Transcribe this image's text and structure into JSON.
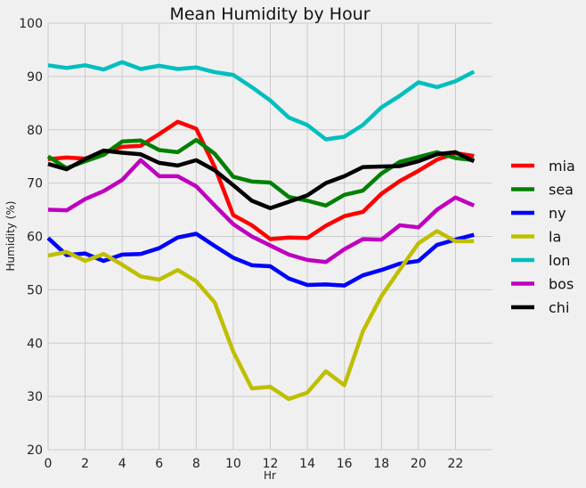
{
  "chart_data": {
    "type": "line",
    "title": "Mean Humidity by Hour",
    "xlabel": "Hr",
    "ylabel": "Humidity (%)",
    "xlim": [
      0,
      24
    ],
    "ylim": [
      20,
      100
    ],
    "xticks": [
      0,
      2,
      4,
      6,
      8,
      10,
      12,
      14,
      16,
      18,
      20,
      22
    ],
    "yticks": [
      20,
      30,
      40,
      50,
      60,
      70,
      80,
      90,
      100
    ],
    "grid": true,
    "legend_position": "right",
    "x": [
      0,
      1,
      2,
      3,
      4,
      5,
      6,
      7,
      8,
      9,
      10,
      11,
      12,
      13,
      14,
      15,
      16,
      17,
      18,
      19,
      20,
      21,
      22,
      23
    ],
    "series": [
      {
        "name": "mia",
        "color": "#ff0000",
        "values": [
          74.5,
          74.8,
          74.6,
          75.8,
          76.8,
          77.0,
          79.2,
          81.5,
          80.2,
          73.0,
          64.0,
          62.1,
          59.5,
          59.8,
          59.7,
          62.0,
          63.8,
          64.6,
          68.0,
          70.4,
          72.3,
          74.4,
          75.6,
          75.1
        ]
      },
      {
        "name": "sea",
        "color": "#008000",
        "values": [
          75.0,
          72.8,
          74.1,
          75.3,
          77.8,
          78.0,
          76.2,
          75.8,
          78.1,
          75.5,
          71.2,
          70.3,
          70.1,
          67.4,
          66.7,
          65.8,
          67.8,
          68.6,
          71.8,
          74.0,
          74.9,
          75.8,
          74.7,
          74.3
        ]
      },
      {
        "name": "ny",
        "color": "#0000ff",
        "values": [
          59.7,
          56.5,
          56.8,
          55.4,
          56.6,
          56.7,
          57.8,
          59.8,
          60.5,
          58.2,
          56.0,
          54.6,
          54.4,
          52.1,
          50.9,
          51.0,
          50.8,
          52.7,
          53.7,
          54.9,
          55.4,
          58.4,
          59.4,
          60.3
        ]
      },
      {
        "name": "la",
        "color": "#bfbf00",
        "values": [
          56.4,
          57.1,
          55.4,
          56.7,
          54.7,
          52.5,
          51.9,
          53.7,
          51.6,
          47.6,
          38.4,
          31.5,
          31.8,
          29.5,
          30.7,
          34.7,
          32.1,
          42.2,
          48.8,
          53.8,
          58.7,
          61.0,
          59.1,
          59.1
        ]
      },
      {
        "name": "lon",
        "color": "#00bfbf",
        "values": [
          92.1,
          91.6,
          92.1,
          91.3,
          92.7,
          91.4,
          92.0,
          91.4,
          91.7,
          90.8,
          90.3,
          88.0,
          85.5,
          82.3,
          80.9,
          78.2,
          78.7,
          80.9,
          84.2,
          86.4,
          88.9,
          88.0,
          89.1,
          90.9
        ]
      },
      {
        "name": "bos",
        "color": "#bf00bf",
        "values": [
          65.0,
          64.9,
          67.0,
          68.5,
          70.6,
          74.3,
          71.3,
          71.3,
          69.4,
          65.8,
          62.3,
          60.0,
          58.3,
          56.6,
          55.6,
          55.2,
          57.6,
          59.5,
          59.4,
          62.1,
          61.7,
          65.0,
          67.3,
          65.8
        ]
      },
      {
        "name": "chi",
        "color": "#000000",
        "values": [
          73.6,
          72.6,
          74.5,
          76.1,
          75.7,
          75.4,
          73.8,
          73.3,
          74.3,
          72.4,
          69.6,
          66.7,
          65.3,
          66.5,
          67.7,
          70.0,
          71.3,
          73.0,
          73.1,
          73.2,
          74.1,
          75.4,
          75.8,
          74.1
        ]
      }
    ]
  }
}
